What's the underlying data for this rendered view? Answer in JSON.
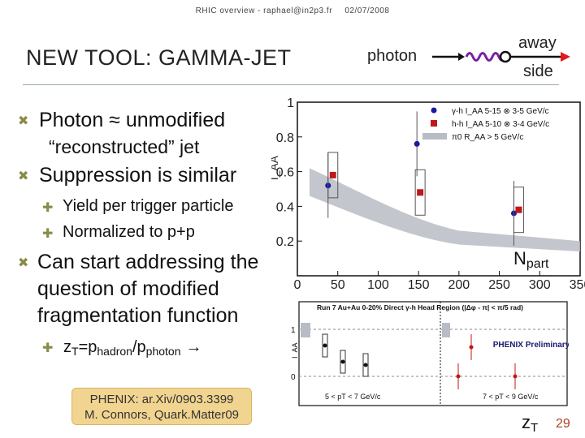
{
  "header": {
    "left": "RHIC overview - raphael@in2p3.fr",
    "right": "02/07/2008"
  },
  "title": "NEW TOOL: GAMMA-JET",
  "bullets": {
    "b1_line1": "Photon ≈ unmodified",
    "b1_line2": "“reconstructed” jet",
    "b2": "Suppression is similar",
    "b2_sub1": "Yield per trigger particle",
    "b2_sub2": "Normalized to p+p",
    "b3_line1": "Can start addressing the",
    "b3_line2": "question of modified",
    "b3_line3": "fragmentation function",
    "b3_sub1_z": "z",
    "b3_sub1_T": "T",
    "b3_sub1_eq": "=p",
    "b3_sub1_hadron": "hadron",
    "b3_sub1_slash": "/p",
    "b3_sub1_photon": "photon"
  },
  "citation": {
    "line1": "PHENIX: ar.Xiv/0903.3399",
    "line2": "M. Connors, Quark.Matter09"
  },
  "diagram": {
    "photon_label": "photon",
    "away_label": "away",
    "side_label": "side"
  },
  "chart_data": [
    {
      "type": "scatter",
      "title": "",
      "ylabel": "I_AA",
      "xlabel": "N_part",
      "xlim": [
        0,
        350
      ],
      "ylim": [
        0,
        1
      ],
      "xticks": [
        "0",
        "50",
        "100",
        "150",
        "200",
        "250",
        "300",
        "350"
      ],
      "yticks": [
        "0.2",
        "0.4",
        "0.6",
        "0.8",
        "1"
      ],
      "series": [
        {
          "name": "γ-h I_AA 5-15 ⊗ 3-5 GeV/c",
          "color": "#1a1aa0",
          "marker": "circle",
          "points": [
            [
              40,
              0.52
            ],
            [
              150,
              0.76
            ],
            [
              270,
              0.36
            ]
          ]
        },
        {
          "name": "h-h I_AA 5-10 ⊗ 3-4 GeV/c",
          "color": "#c01818",
          "marker": "square",
          "points": [
            [
              42,
              0.58
            ],
            [
              150,
              0.48
            ],
            [
              272,
              0.38
            ]
          ]
        },
        {
          "name": "π0 R_AA > 5 GeV/c",
          "color": "#b8bcc4",
          "marker": "band"
        }
      ],
      "legend_position": "top-right"
    },
    {
      "type": "scatter",
      "title": "Run 7 Au+Au 0-20% Direct γ-h Head Region (|Δφ - π| < π/5 rad)",
      "ylabel": "I_AA",
      "xlabel": "z_T",
      "panels": [
        {
          "label": "5 < pT < 7 GeV/c"
        },
        {
          "label": "7 < pT < 9 GeV/c"
        }
      ],
      "yticks": [
        "0",
        "1"
      ],
      "watermark": "PHENIX Preliminary"
    }
  ],
  "footer": {
    "zt_z": "z",
    "zt_T": "T",
    "npart_N": "N",
    "npart_part": "part",
    "page": "29"
  }
}
